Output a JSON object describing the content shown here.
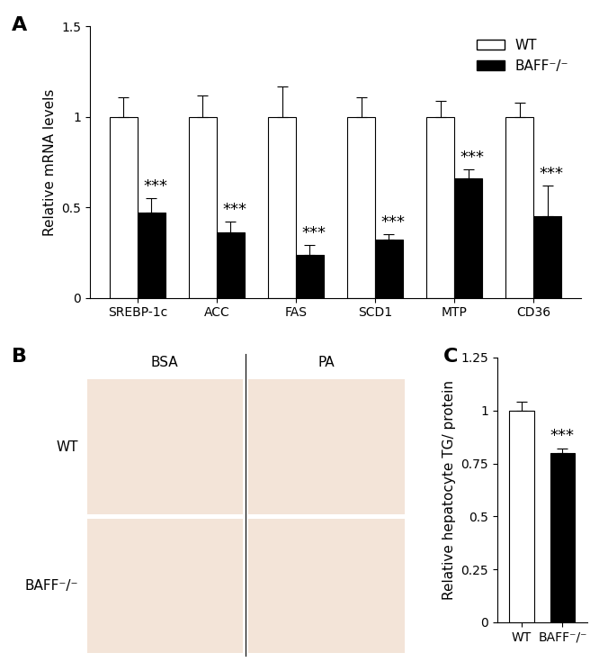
{
  "chart_data": [
    {
      "type": "bar",
      "panel_label": "A",
      "y_label": "Relative mRNA levels",
      "categories": [
        "SREBP-1c",
        "ACC",
        "FAS",
        "SCD1",
        "MTP",
        "CD36"
      ],
      "series": [
        {
          "name": "WT",
          "color": "#ffffff",
          "values": [
            1,
            1,
            1,
            1,
            1,
            1
          ],
          "errors": [
            0.11,
            0.12,
            0.17,
            0.11,
            0.09,
            0.08
          ]
        },
        {
          "name": "BAFF⁻/⁻",
          "color": "#000000",
          "values": [
            0.47,
            0.36,
            0.24,
            0.32,
            0.66,
            0.45
          ],
          "errors": [
            0.08,
            0.06,
            0.05,
            0.03,
            0.05,
            0.17
          ],
          "annotations": [
            "***",
            "***",
            "***",
            "***",
            "***",
            "***"
          ]
        }
      ],
      "ylim": [
        0,
        1.5
      ],
      "yticks": [
        0,
        0.5,
        1,
        1.5
      ],
      "legend": "upper right"
    },
    {
      "type": "bar",
      "panel_label": "C",
      "y_label": "Relative hepatocyte TG/ protein",
      "categories": [
        "WT",
        "BAFF⁻/⁻"
      ],
      "values": [
        1,
        0.8
      ],
      "errors": [
        0.04,
        0.02
      ],
      "colors": [
        "#ffffff",
        "#000000"
      ],
      "annotations": [
        {
          "category": "BAFF⁻/⁻",
          "text": "***"
        }
      ],
      "ylim": [
        0,
        1.25
      ],
      "yticks": [
        0,
        0.25,
        0.5,
        0.75,
        1,
        1.25
      ]
    }
  ],
  "image_panel": {
    "panel_label": "B",
    "columns": [
      "BSA",
      "PA"
    ],
    "rows": [
      "WT",
      "BAFF⁻/⁻"
    ]
  }
}
